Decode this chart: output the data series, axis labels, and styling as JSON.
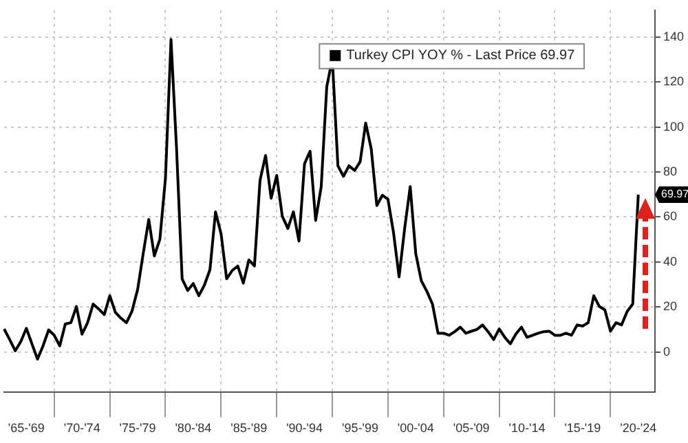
{
  "chart_data": {
    "type": "line",
    "categories": [
      null,
      null,
      null,
      null,
      "'65-'69",
      null,
      null,
      null,
      null,
      null,
      null,
      null,
      null,
      null,
      "'70-'74",
      null,
      null,
      null,
      null,
      null,
      null,
      null,
      null,
      null,
      "'75-'79",
      null,
      null,
      null,
      null,
      null,
      null,
      null,
      null,
      null,
      "'80-'84",
      null,
      null,
      null,
      null,
      null,
      null,
      null,
      null,
      null,
      "'85-'89",
      null,
      null,
      null,
      null,
      null,
      null,
      null,
      null,
      null,
      "'90-'94",
      null,
      null,
      null,
      null,
      null,
      null,
      null,
      null,
      null,
      "'95-'99",
      null,
      null,
      null,
      null,
      null,
      null,
      null,
      null,
      null,
      "'00-'04",
      null,
      null,
      null,
      null,
      null,
      null,
      null,
      null,
      null,
      "'05-'09",
      null,
      null,
      null,
      null,
      null,
      null,
      null,
      null,
      null,
      "'10-'14",
      null,
      null,
      null,
      null,
      null,
      null,
      null,
      null,
      null,
      "'15-'19",
      null,
      null,
      null,
      null,
      null,
      null,
      null,
      null,
      null,
      "'20-'24",
      null,
      null,
      null
    ],
    "series": [
      {
        "name": "Turkey CPI YOY % - Last Price 69.97",
        "color": "#000000",
        "values": [
          10.2,
          5.5,
          0.5,
          4.6,
          10.5,
          3.6,
          -3.2,
          2.7,
          9.8,
          7.4,
          2.7,
          12.4,
          13,
          20.2,
          7.9,
          13,
          21.3,
          19.1,
          16.6,
          25,
          17.6,
          15,
          13,
          18.2,
          27.8,
          43.7,
          58.9,
          42.7,
          50.2,
          77.2,
          139,
          90.2,
          32.5,
          27.3,
          30.4,
          25,
          29.7,
          36.6,
          62.3,
          52.5,
          32.5,
          36.2,
          38.2,
          30.6,
          40.9,
          38.2,
          76.3,
          87.4,
          68.3,
          78.5,
          60.4,
          54.9,
          62.3,
          49.3,
          83.7,
          89.3,
          58.5,
          73.5,
          118,
          130.3,
          82.8,
          78.1,
          82.8,
          80.7,
          84.6,
          101.8,
          90.2,
          65.1,
          69.7,
          67.9,
          53,
          33.4,
          54.9,
          73.5,
          43.7,
          31.6,
          26.9,
          21.3,
          8.3,
          8.3,
          7.4,
          9,
          11,
          8.3,
          9.2,
          10,
          12,
          9,
          5.5,
          10.2,
          6.5,
          3.6,
          8,
          11,
          6.5,
          7.4,
          8.3,
          9,
          9.2,
          7.4,
          7.4,
          8.3,
          7.4,
          12,
          11.5,
          13,
          25,
          20.2,
          18.7,
          9.2,
          13,
          12,
          18,
          21.3,
          69.97,
          null,
          null,
          null
        ]
      }
    ],
    "annotations": [
      {
        "text": "69.97",
        "y": 69.97
      }
    ],
    "ylim": [
      -18,
      152
    ],
    "yticks": [
      0,
      20,
      40,
      60,
      80,
      100,
      120,
      140
    ],
    "grid": true,
    "legend": "top right",
    "marker": "none",
    "line_style": "solid"
  }
}
